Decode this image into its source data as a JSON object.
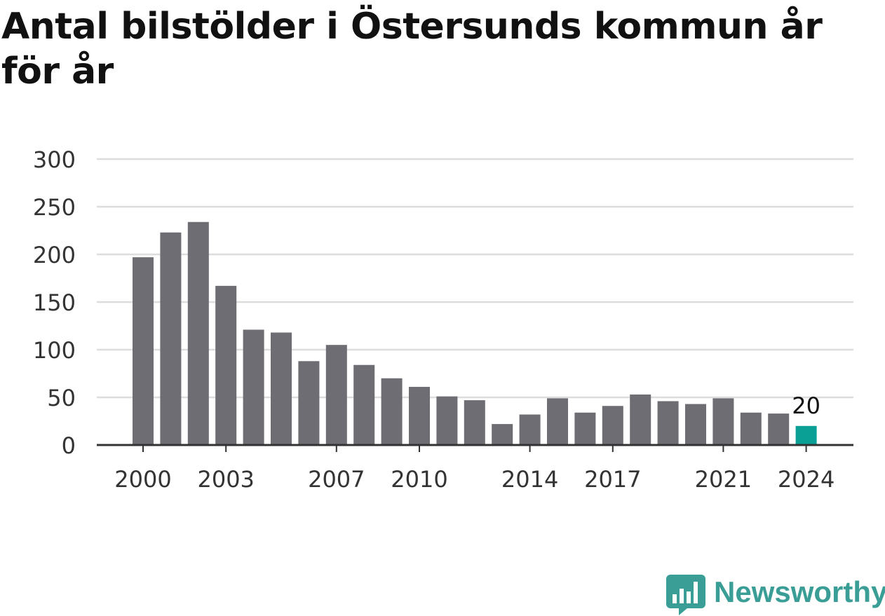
{
  "title": "Antal bilstölder i Östersunds kommun år för år",
  "brand": {
    "name": "Newsworthy",
    "color": "#3a9e96"
  },
  "colors": {
    "bar": "#6e6d73",
    "highlight": "#0aa096",
    "grid": "#dddddd",
    "axis": "#333333",
    "text": "#333333"
  },
  "chart_data": {
    "type": "bar",
    "title": "Antal bilstölder i Östersunds kommun år för år",
    "categories": [
      "2000",
      "2001",
      "2002",
      "2003",
      "2004",
      "2005",
      "2006",
      "2007",
      "2008",
      "2009",
      "2010",
      "2011",
      "2012",
      "2013",
      "2014",
      "2015",
      "2016",
      "2017",
      "2018",
      "2019",
      "2020",
      "2021",
      "2022",
      "2023",
      "2024"
    ],
    "values": [
      197,
      223,
      234,
      167,
      121,
      118,
      88,
      105,
      84,
      70,
      61,
      51,
      47,
      22,
      32,
      49,
      34,
      41,
      53,
      46,
      43,
      49,
      34,
      33,
      20
    ],
    "x_tick_labels": [
      "2000",
      "2003",
      "2007",
      "2010",
      "2014",
      "2017",
      "2021",
      "2024"
    ],
    "y_ticks": [
      0,
      50,
      100,
      150,
      200,
      250,
      300
    ],
    "ylim": [
      0,
      300
    ],
    "grid": true,
    "highlight_index": 24,
    "annotations": [
      {
        "category": "2024",
        "label": "20"
      }
    ],
    "xlabel": "",
    "ylabel": ""
  }
}
